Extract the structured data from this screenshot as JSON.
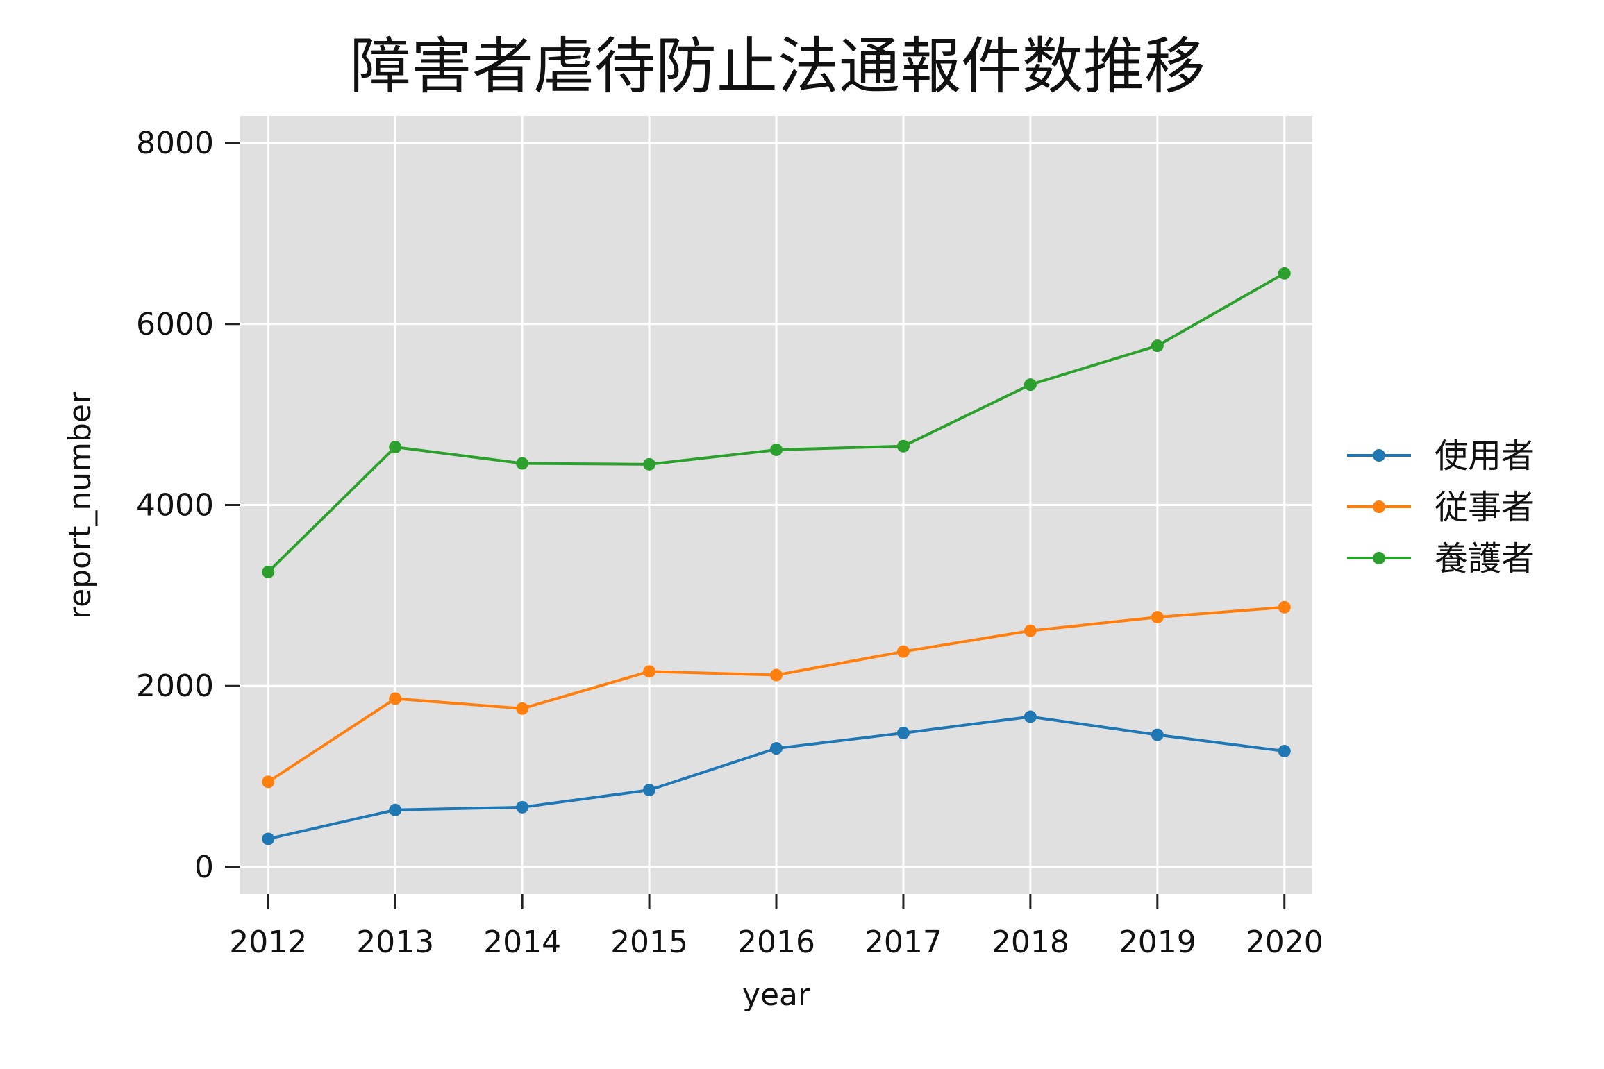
{
  "chart_data": {
    "type": "line",
    "title": "障害者虐待防止法通報件数推移",
    "xlabel": "year",
    "ylabel": "report_number",
    "x": [
      2012,
      2013,
      2014,
      2015,
      2016,
      2017,
      2018,
      2019,
      2020
    ],
    "xlim": [
      2011.78,
      2020.22
    ],
    "ylim": [
      -300,
      8300
    ],
    "yticks": [
      0,
      2000,
      4000,
      6000,
      8000
    ],
    "grid": true,
    "legend_position": "right",
    "background": "#e0e0e0",
    "series": [
      {
        "name": "使用者",
        "color": "#1f77b4",
        "values": [
          310,
          630,
          660,
          850,
          1310,
          1480,
          1660,
          1460,
          1280
        ]
      },
      {
        "name": "従事者",
        "color": "#ff7f0e",
        "values": [
          940,
          1860,
          1750,
          2160,
          2120,
          2380,
          2610,
          2760,
          2870
        ]
      },
      {
        "name": "養護者",
        "color": "#2ca02c",
        "values": [
          3260,
          4640,
          4460,
          4450,
          4610,
          4650,
          5330,
          5760,
          6560
        ]
      }
    ]
  }
}
